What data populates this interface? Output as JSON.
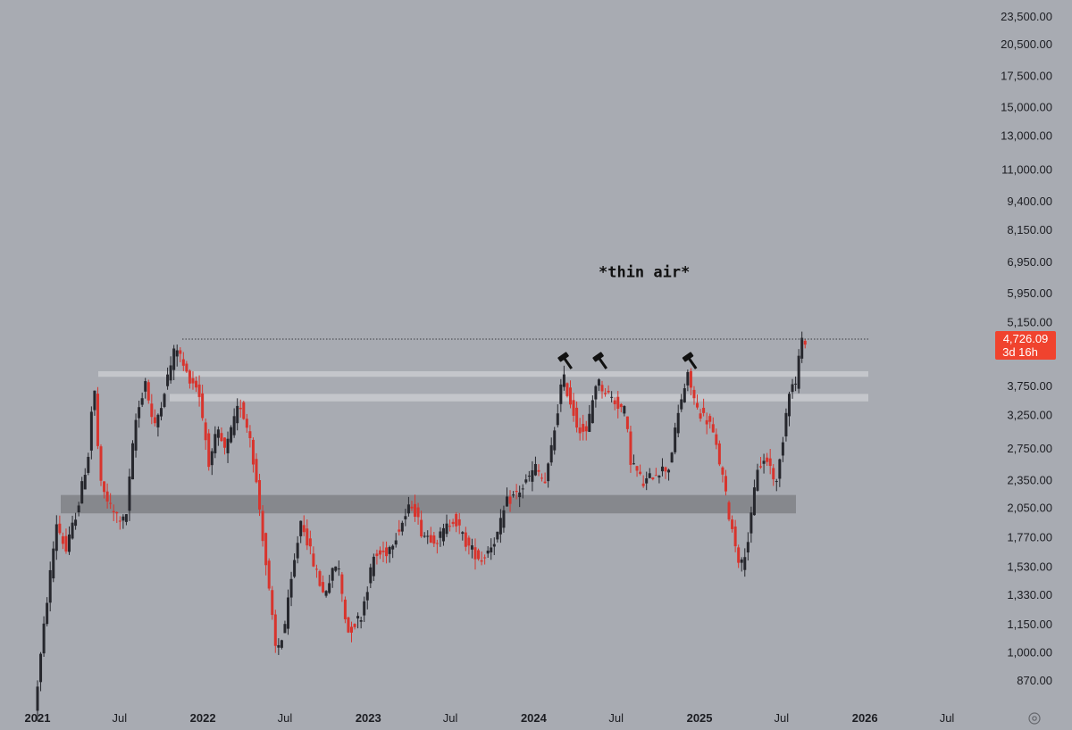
{
  "chart_data": {
    "type": "candlestick",
    "scale": "log",
    "ylim": [
      820,
      24500
    ],
    "y_ticks": [
      "23,500.00",
      "20,500.00",
      "17,500.00",
      "15,000.00",
      "13,000.00",
      "11,000.00",
      "9,400.00",
      "8,150.00",
      "6,950.00",
      "5,950.00",
      "5,150.00",
      "3,750.00",
      "3,250.00",
      "2,750.00",
      "2,350.00",
      "2,050.00",
      "1,770.00",
      "1,530.00",
      "1,330.00",
      "1,150.00",
      "1,000.00",
      "870.00"
    ],
    "x_ticks": [
      {
        "label": "2021",
        "bold": true,
        "date": "2021-01-01"
      },
      {
        "label": "Jul",
        "bold": false,
        "date": "2021-07-01"
      },
      {
        "label": "2022",
        "bold": true,
        "date": "2022-01-01"
      },
      {
        "label": "Jul",
        "bold": false,
        "date": "2022-07-01"
      },
      {
        "label": "2023",
        "bold": true,
        "date": "2023-01-01"
      },
      {
        "label": "Jul",
        "bold": false,
        "date": "2023-07-01"
      },
      {
        "label": "2024",
        "bold": true,
        "date": "2024-01-01"
      },
      {
        "label": "Jul",
        "bold": false,
        "date": "2024-07-01"
      },
      {
        "label": "2025",
        "bold": true,
        "date": "2025-01-01"
      },
      {
        "label": "Jul",
        "bold": false,
        "date": "2025-07-01"
      },
      {
        "label": "2026",
        "bold": true,
        "date": "2026-01-01"
      },
      {
        "label": "Jul",
        "bold": false,
        "date": "2026-07-01"
      }
    ],
    "price_path": [
      {
        "date": "2021-01-01",
        "price": 740
      },
      {
        "date": "2021-01-29",
        "price": 1300
      },
      {
        "date": "2021-02-19",
        "price": 1900
      },
      {
        "date": "2021-03-12",
        "price": 1650
      },
      {
        "date": "2021-04-09",
        "price": 2100
      },
      {
        "date": "2021-05-01",
        "price": 2700
      },
      {
        "date": "2021-05-12",
        "price": 3900
      },
      {
        "date": "2021-05-26",
        "price": 2300
      },
      {
        "date": "2021-06-23",
        "price": 2000
      },
      {
        "date": "2021-07-21",
        "price": 1900
      },
      {
        "date": "2021-08-11",
        "price": 3100
      },
      {
        "date": "2021-09-03",
        "price": 3850
      },
      {
        "date": "2021-09-22",
        "price": 3000
      },
      {
        "date": "2021-10-20",
        "price": 3850
      },
      {
        "date": "2021-11-10",
        "price": 4600
      },
      {
        "date": "2021-12-01",
        "price": 4000
      },
      {
        "date": "2021-12-29",
        "price": 3700
      },
      {
        "date": "2022-01-23",
        "price": 2500
      },
      {
        "date": "2022-02-08",
        "price": 3000
      },
      {
        "date": "2022-02-26",
        "price": 2700
      },
      {
        "date": "2022-03-30",
        "price": 3450
      },
      {
        "date": "2022-04-23",
        "price": 2900
      },
      {
        "date": "2022-05-14",
        "price": 2000
      },
      {
        "date": "2022-06-18",
        "price": 1000
      },
      {
        "date": "2022-07-05",
        "price": 1100
      },
      {
        "date": "2022-08-13",
        "price": 1950
      },
      {
        "date": "2022-09-05",
        "price": 1600
      },
      {
        "date": "2022-10-01",
        "price": 1330
      },
      {
        "date": "2022-11-01",
        "price": 1570
      },
      {
        "date": "2022-11-23",
        "price": 1100
      },
      {
        "date": "2022-12-23",
        "price": 1200
      },
      {
        "date": "2023-01-20",
        "price": 1600
      },
      {
        "date": "2023-02-19",
        "price": 1650
      },
      {
        "date": "2023-04-15",
        "price": 2100
      },
      {
        "date": "2023-05-07",
        "price": 1800
      },
      {
        "date": "2023-06-11",
        "price": 1750
      },
      {
        "date": "2023-07-15",
        "price": 1950
      },
      {
        "date": "2023-08-14",
        "price": 1700
      },
      {
        "date": "2023-09-15",
        "price": 1580
      },
      {
        "date": "2023-10-21",
        "price": 1800
      },
      {
        "date": "2023-11-09",
        "price": 2100
      },
      {
        "date": "2023-12-13",
        "price": 2250
      },
      {
        "date": "2024-01-12",
        "price": 2500
      },
      {
        "date": "2024-02-03",
        "price": 2300
      },
      {
        "date": "2024-02-26",
        "price": 3150
      },
      {
        "date": "2024-03-12",
        "price": 3950
      },
      {
        "date": "2024-04-12",
        "price": 3100
      },
      {
        "date": "2024-05-03",
        "price": 2950
      },
      {
        "date": "2024-05-25",
        "price": 3850
      },
      {
        "date": "2024-07-01",
        "price": 3500
      },
      {
        "date": "2024-07-27",
        "price": 3300
      },
      {
        "date": "2024-08-09",
        "price": 2600
      },
      {
        "date": "2024-09-06",
        "price": 2300
      },
      {
        "date": "2024-10-04",
        "price": 2450
      },
      {
        "date": "2024-11-01",
        "price": 2500
      },
      {
        "date": "2024-11-28",
        "price": 3500
      },
      {
        "date": "2024-12-14",
        "price": 3950
      },
      {
        "date": "2025-01-01",
        "price": 3350
      },
      {
        "date": "2025-02-01",
        "price": 3100
      },
      {
        "date": "2025-02-24",
        "price": 2500
      },
      {
        "date": "2025-03-15",
        "price": 1950
      },
      {
        "date": "2025-04-09",
        "price": 1520
      },
      {
        "date": "2025-04-28",
        "price": 1800
      },
      {
        "date": "2025-05-15",
        "price": 2500
      },
      {
        "date": "2025-06-07",
        "price": 2600
      },
      {
        "date": "2025-06-27",
        "price": 2300
      },
      {
        "date": "2025-07-13",
        "price": 3000
      },
      {
        "date": "2025-07-24",
        "price": 3700
      },
      {
        "date": "2025-08-09",
        "price": 3800
      },
      {
        "date": "2025-08-17",
        "price": 4500
      },
      {
        "date": "2025-08-25",
        "price": 4726
      }
    ],
    "horizontal_line": {
      "price": 4726.09,
      "style": "dotted"
    },
    "zones": [
      {
        "from": 3920,
        "to": 4030,
        "color": "#c4c6cb"
      },
      {
        "from": 3470,
        "to": 3600,
        "color": "#c4c6cb"
      },
      {
        "from": 1990,
        "to": 2180,
        "color": "#86888d"
      }
    ],
    "markers": [
      {
        "date": "2024-03-12",
        "icon": "hammer-icon"
      },
      {
        "date": "2024-05-28",
        "icon": "hammer-icon"
      },
      {
        "date": "2024-12-12",
        "icon": "hammer-icon"
      }
    ],
    "annotation": {
      "text": "*thin air*",
      "date": "2024-09-01",
      "price": 6600
    },
    "last_price": {
      "value": "4,726.09",
      "countdown": "3d 16h",
      "color": "#f0432e"
    },
    "colors": {
      "up": "#26272d",
      "down": "#d8342d",
      "background": "#a8abb2"
    }
  }
}
